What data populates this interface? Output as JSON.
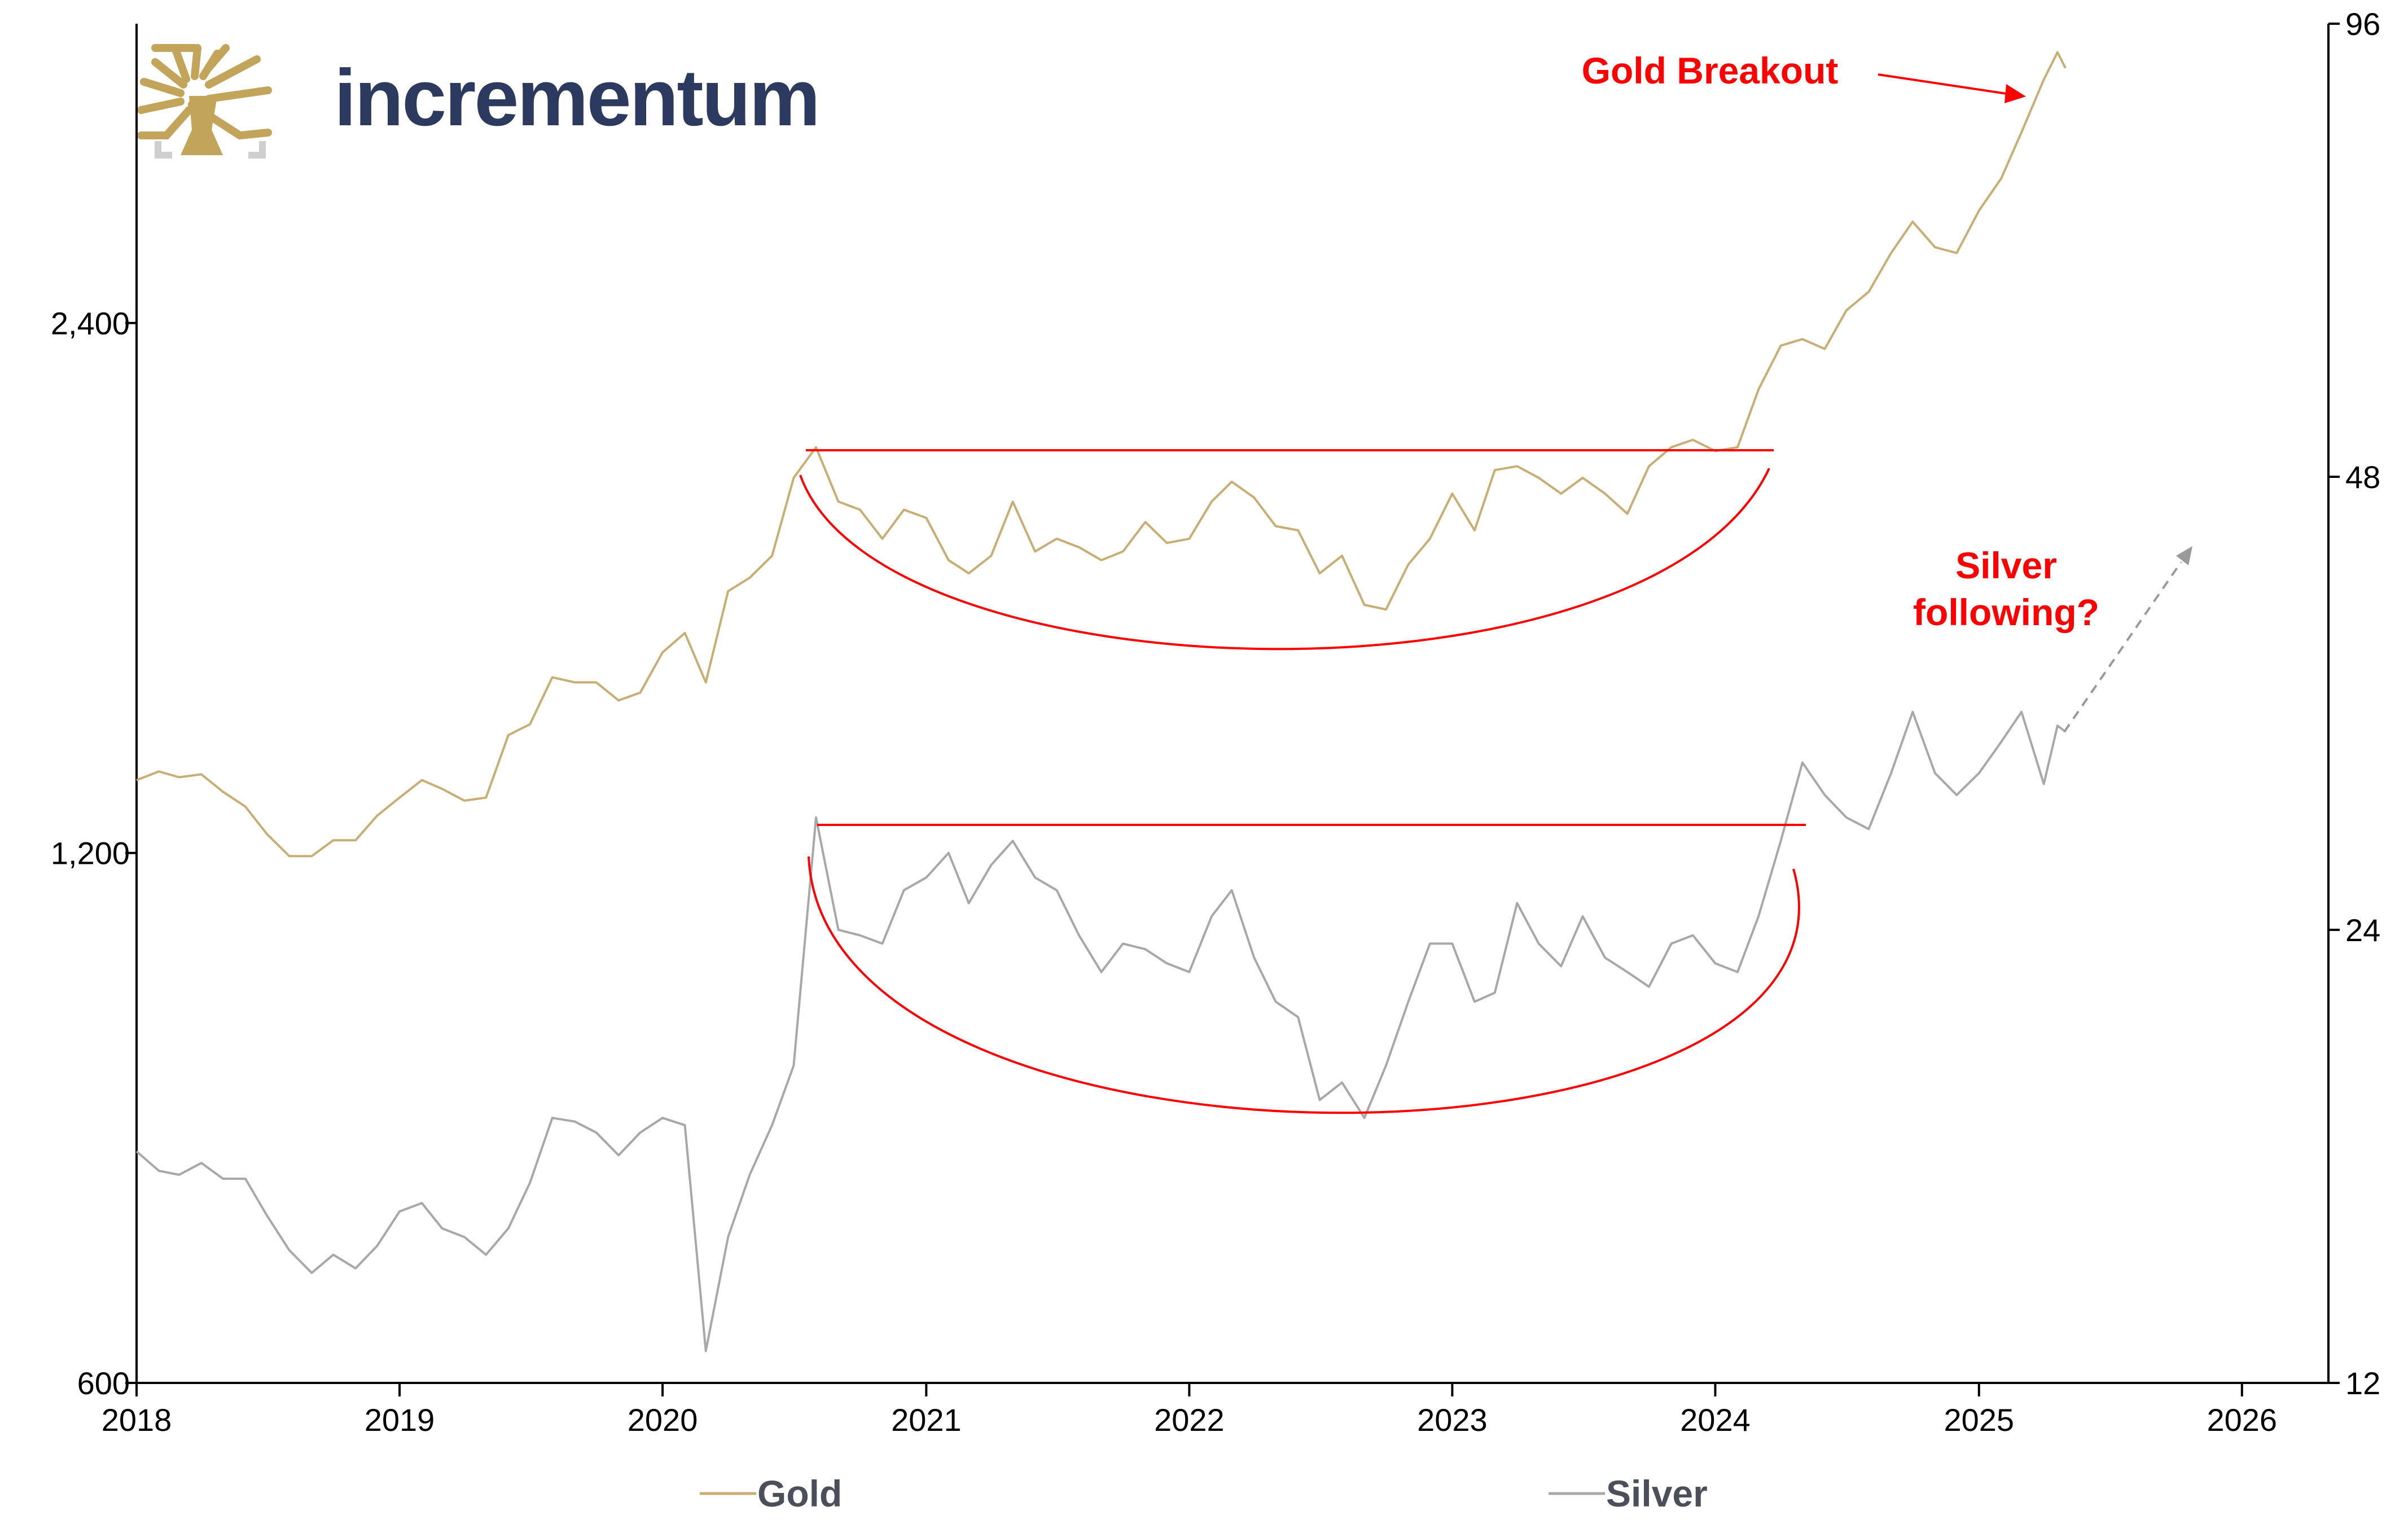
{
  "logo": {
    "text": "incrementum"
  },
  "colors": {
    "gold": "#c8ae74",
    "silver": "#a8a8a8",
    "accent": "#ff0000",
    "brand": "#2c3a60",
    "logo_tree": "#c2a45a"
  },
  "chart_data": {
    "type": "line",
    "x_ticks": [
      "2018",
      "2019",
      "2020",
      "2021",
      "2022",
      "2023",
      "2024",
      "2025",
      "2026"
    ],
    "xlim": [
      "2018-01-01",
      "2026-05-01"
    ],
    "y_left": {
      "scale": "log",
      "ticks": [
        "600",
        "1,200",
        "2,400"
      ],
      "tick_values": [
        600,
        1200,
        2400
      ],
      "range": [
        600,
        3550
      ]
    },
    "y_right": {
      "scale": "log",
      "ticks": [
        "12",
        "24",
        "48",
        "96"
      ],
      "tick_values": [
        12,
        24,
        48,
        96
      ],
      "range": [
        12,
        96
      ]
    },
    "grid": false,
    "legend": {
      "position": "bottom",
      "entries": [
        "Gold",
        "Silver"
      ]
    },
    "series": [
      {
        "name": "Gold",
        "axis": "left",
        "points": [
          [
            "2018-01-01",
            1320
          ],
          [
            "2018-02-01",
            1335
          ],
          [
            "2018-03-01",
            1325
          ],
          [
            "2018-04-01",
            1330
          ],
          [
            "2018-05-01",
            1300
          ],
          [
            "2018-06-01",
            1275
          ],
          [
            "2018-07-01",
            1230
          ],
          [
            "2018-08-01",
            1195
          ],
          [
            "2018-09-01",
            1195
          ],
          [
            "2018-10-01",
            1220
          ],
          [
            "2018-11-01",
            1220
          ],
          [
            "2018-12-01",
            1260
          ],
          [
            "2019-01-01",
            1290
          ],
          [
            "2019-02-01",
            1320
          ],
          [
            "2019-03-01",
            1305
          ],
          [
            "2019-04-01",
            1285
          ],
          [
            "2019-05-01",
            1290
          ],
          [
            "2019-06-01",
            1400
          ],
          [
            "2019-07-01",
            1420
          ],
          [
            "2019-08-01",
            1510
          ],
          [
            "2019-09-01",
            1500
          ],
          [
            "2019-10-01",
            1500
          ],
          [
            "2019-11-01",
            1465
          ],
          [
            "2019-12-01",
            1480
          ],
          [
            "2020-01-01",
            1560
          ],
          [
            "2020-02-01",
            1600
          ],
          [
            "2020-03-01",
            1500
          ],
          [
            "2020-04-01",
            1690
          ],
          [
            "2020-05-01",
            1720
          ],
          [
            "2020-06-01",
            1770
          ],
          [
            "2020-07-01",
            1960
          ],
          [
            "2020-08-01",
            2040
          ],
          [
            "2020-09-01",
            1900
          ],
          [
            "2020-10-01",
            1880
          ],
          [
            "2020-11-01",
            1810
          ],
          [
            "2020-12-01",
            1880
          ],
          [
            "2021-01-01",
            1860
          ],
          [
            "2021-02-01",
            1760
          ],
          [
            "2021-03-01",
            1730
          ],
          [
            "2021-04-01",
            1770
          ],
          [
            "2021-05-01",
            1900
          ],
          [
            "2021-06-01",
            1780
          ],
          [
            "2021-07-01",
            1810
          ],
          [
            "2021-08-01",
            1790
          ],
          [
            "2021-09-01",
            1760
          ],
          [
            "2021-10-01",
            1780
          ],
          [
            "2021-11-01",
            1850
          ],
          [
            "2021-12-01",
            1800
          ],
          [
            "2022-01-01",
            1810
          ],
          [
            "2022-02-01",
            1900
          ],
          [
            "2022-03-01",
            1950
          ],
          [
            "2022-04-01",
            1910
          ],
          [
            "2022-05-01",
            1840
          ],
          [
            "2022-06-01",
            1830
          ],
          [
            "2022-07-01",
            1730
          ],
          [
            "2022-08-01",
            1770
          ],
          [
            "2022-09-01",
            1660
          ],
          [
            "2022-10-01",
            1650
          ],
          [
            "2022-11-01",
            1750
          ],
          [
            "2022-12-01",
            1810
          ],
          [
            "2023-01-01",
            1920
          ],
          [
            "2023-02-01",
            1830
          ],
          [
            "2023-03-01",
            1980
          ],
          [
            "2023-04-01",
            1990
          ],
          [
            "2023-05-01",
            1960
          ],
          [
            "2023-06-01",
            1920
          ],
          [
            "2023-07-01",
            1960
          ],
          [
            "2023-08-01",
            1920
          ],
          [
            "2023-09-01",
            1870
          ],
          [
            "2023-10-01",
            1990
          ],
          [
            "2023-11-01",
            2040
          ],
          [
            "2023-12-01",
            2060
          ],
          [
            "2024-01-01",
            2030
          ],
          [
            "2024-02-01",
            2040
          ],
          [
            "2024-03-01",
            2200
          ],
          [
            "2024-04-01",
            2330
          ],
          [
            "2024-05-01",
            2350
          ],
          [
            "2024-06-01",
            2320
          ],
          [
            "2024-07-01",
            2440
          ],
          [
            "2024-08-01",
            2500
          ],
          [
            "2024-09-01",
            2630
          ],
          [
            "2024-10-01",
            2740
          ],
          [
            "2024-11-01",
            2650
          ],
          [
            "2024-12-01",
            2630
          ],
          [
            "2025-01-01",
            2780
          ],
          [
            "2025-02-01",
            2900
          ],
          [
            "2025-03-01",
            3080
          ],
          [
            "2025-04-01",
            3300
          ],
          [
            "2025-04-20",
            3420
          ],
          [
            "2025-05-01",
            3350
          ]
        ]
      },
      {
        "name": "Silver",
        "axis": "right",
        "points": [
          [
            "2018-01-01",
            17.1
          ],
          [
            "2018-02-01",
            16.6
          ],
          [
            "2018-03-01",
            16.5
          ],
          [
            "2018-04-01",
            16.8
          ],
          [
            "2018-05-01",
            16.4
          ],
          [
            "2018-06-01",
            16.4
          ],
          [
            "2018-07-01",
            15.5
          ],
          [
            "2018-08-01",
            14.7
          ],
          [
            "2018-09-01",
            14.2
          ],
          [
            "2018-10-01",
            14.6
          ],
          [
            "2018-11-01",
            14.3
          ],
          [
            "2018-12-01",
            14.8
          ],
          [
            "2019-01-01",
            15.6
          ],
          [
            "2019-02-01",
            15.8
          ],
          [
            "2019-03-01",
            15.2
          ],
          [
            "2019-04-01",
            15.0
          ],
          [
            "2019-05-01",
            14.6
          ],
          [
            "2019-06-01",
            15.2
          ],
          [
            "2019-07-01",
            16.3
          ],
          [
            "2019-08-01",
            18.0
          ],
          [
            "2019-09-01",
            17.9
          ],
          [
            "2019-10-01",
            17.6
          ],
          [
            "2019-11-01",
            17.0
          ],
          [
            "2019-12-01",
            17.6
          ],
          [
            "2020-01-01",
            18.0
          ],
          [
            "2020-02-01",
            17.8
          ],
          [
            "2020-03-01",
            12.6
          ],
          [
            "2020-04-01",
            15.0
          ],
          [
            "2020-05-01",
            16.5
          ],
          [
            "2020-06-01",
            17.8
          ],
          [
            "2020-07-01",
            19.5
          ],
          [
            "2020-08-01",
            28.5
          ],
          [
            "2020-09-01",
            24.0
          ],
          [
            "2020-10-01",
            23.8
          ],
          [
            "2020-11-01",
            23.5
          ],
          [
            "2020-12-01",
            25.5
          ],
          [
            "2021-01-01",
            26.0
          ],
          [
            "2021-02-01",
            27.0
          ],
          [
            "2021-03-01",
            25.0
          ],
          [
            "2021-04-01",
            26.5
          ],
          [
            "2021-05-01",
            27.5
          ],
          [
            "2021-06-01",
            26.0
          ],
          [
            "2021-07-01",
            25.5
          ],
          [
            "2021-08-01",
            23.8
          ],
          [
            "2021-09-01",
            22.5
          ],
          [
            "2021-10-01",
            23.5
          ],
          [
            "2021-11-01",
            23.3
          ],
          [
            "2021-12-01",
            22.8
          ],
          [
            "2022-01-01",
            22.5
          ],
          [
            "2022-02-01",
            24.5
          ],
          [
            "2022-03-01",
            25.5
          ],
          [
            "2022-04-01",
            23.0
          ],
          [
            "2022-05-01",
            21.5
          ],
          [
            "2022-06-01",
            21.0
          ],
          [
            "2022-07-01",
            18.5
          ],
          [
            "2022-08-01",
            19.0
          ],
          [
            "2022-09-01",
            18.0
          ],
          [
            "2022-10-01",
            19.5
          ],
          [
            "2022-11-01",
            21.5
          ],
          [
            "2022-12-01",
            23.5
          ],
          [
            "2023-01-01",
            23.5
          ],
          [
            "2023-02-01",
            21.5
          ],
          [
            "2023-03-01",
            21.8
          ],
          [
            "2023-04-01",
            25.0
          ],
          [
            "2023-05-01",
            23.5
          ],
          [
            "2023-06-01",
            22.7
          ],
          [
            "2023-07-01",
            24.5
          ],
          [
            "2023-08-01",
            23.0
          ],
          [
            "2023-09-01",
            22.5
          ],
          [
            "2023-10-01",
            22.0
          ],
          [
            "2023-11-01",
            23.5
          ],
          [
            "2023-12-01",
            23.8
          ],
          [
            "2024-01-01",
            22.8
          ],
          [
            "2024-02-01",
            22.5
          ],
          [
            "2024-03-01",
            24.5
          ],
          [
            "2024-04-01",
            27.5
          ],
          [
            "2024-05-01",
            31.0
          ],
          [
            "2024-06-01",
            29.5
          ],
          [
            "2024-07-01",
            28.5
          ],
          [
            "2024-08-01",
            28.0
          ],
          [
            "2024-09-01",
            30.5
          ],
          [
            "2024-10-01",
            33.5
          ],
          [
            "2024-11-01",
            30.5
          ],
          [
            "2024-12-01",
            29.5
          ],
          [
            "2025-01-01",
            30.5
          ],
          [
            "2025-02-01",
            32.0
          ],
          [
            "2025-03-01",
            33.5
          ],
          [
            "2025-04-01",
            30.0
          ],
          [
            "2025-04-20",
            32.8
          ],
          [
            "2025-05-01",
            32.5
          ]
        ]
      }
    ],
    "annotations": [
      {
        "text": "Gold Breakout"
      },
      {
        "lines": [
          "Silver",
          "following?"
        ]
      }
    ]
  }
}
